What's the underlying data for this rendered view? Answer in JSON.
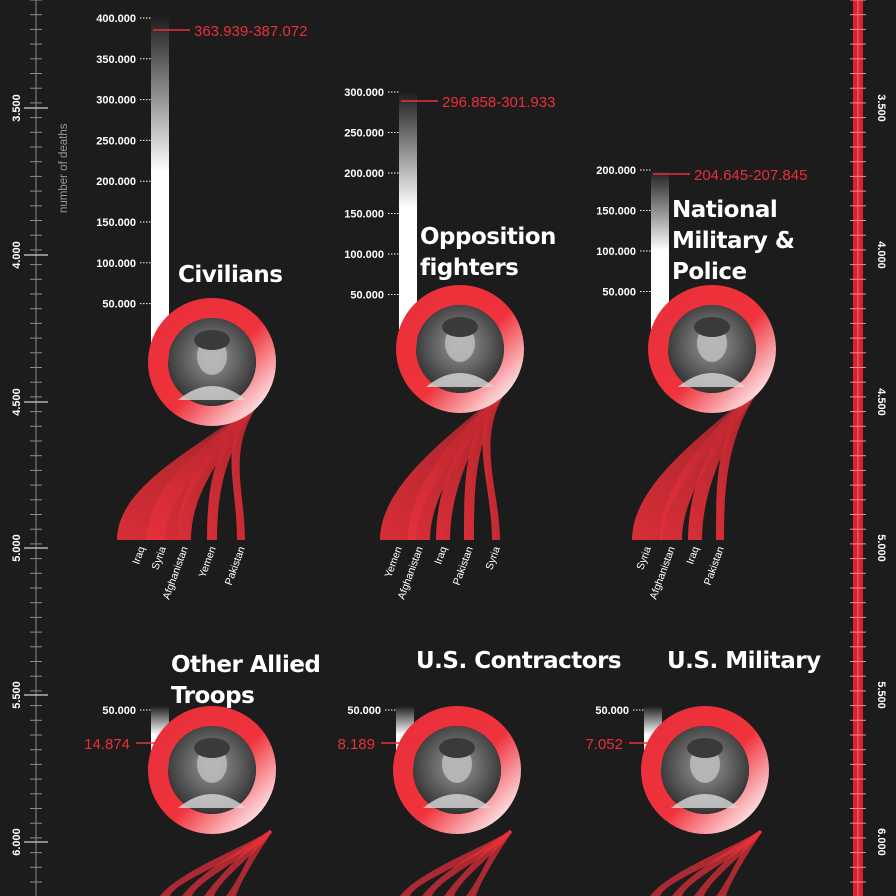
{
  "colors": {
    "background": "#1c1c1c",
    "accent": "#e8303a",
    "white": "#ffffff"
  },
  "y_axis_label": "number of deaths",
  "scale_labels": [
    "3.500",
    "4.000",
    "4.500",
    "5.000",
    "5.500",
    "6.000"
  ],
  "chart_data": [
    {
      "type": "bar",
      "category": "Civilians",
      "title_lines": [
        "Civilians"
      ],
      "value_range": [
        363939,
        387072
      ],
      "value_label": "363.939-387.072",
      "ticks": [
        "400.000",
        "350.000",
        "300.000",
        "250.000",
        "200.000",
        "150.000",
        "100.000",
        "50.000"
      ],
      "countries": [
        "Iraq",
        "Syria",
        "Afghanistan",
        "Yemen",
        "Pakistan"
      ],
      "photo": "civilian-boy-portrait"
    },
    {
      "type": "bar",
      "category": "Opposition fighters",
      "title_lines": [
        "Opposition",
        "fighters"
      ],
      "value_range": [
        296858,
        301933
      ],
      "value_label": "296.858-301.933",
      "ticks": [
        "300.000",
        "250.000",
        "200.000",
        "150.000",
        "100.000",
        "50.000"
      ],
      "countries": [
        "Yemen",
        "Afghanistan",
        "Iraq",
        "Pakistan",
        "Syria"
      ],
      "photo": "fighter-keffiyeh-portrait"
    },
    {
      "type": "bar",
      "category": "National Military & Police",
      "title_lines": [
        "National",
        "Military &",
        "Police"
      ],
      "value_range": [
        204645,
        207845
      ],
      "value_label": "204.645-207.845",
      "ticks": [
        "200.000",
        "150.000",
        "100.000",
        "50.000"
      ],
      "countries": [
        "Syria",
        "Afghanistan",
        "Iraq",
        "Pakistan"
      ],
      "photo": "soldier-helmet-portrait"
    },
    {
      "type": "bar",
      "category": "Other Allied Troops",
      "title_lines": [
        "Other Allied",
        "Troops"
      ],
      "value": 14874,
      "value_label": "14.874",
      "ticks": [
        "50.000"
      ],
      "countries": [],
      "photo": "allied-soldier-portrait"
    },
    {
      "type": "bar",
      "category": "U.S. Contractors",
      "title_lines": [
        "U.S. Contractors"
      ],
      "value": 8189,
      "value_label": "8.189",
      "ticks": [
        "50.000"
      ],
      "countries": [],
      "photo": "contractor-portrait"
    },
    {
      "type": "bar",
      "category": "U.S. Military",
      "title_lines": [
        "U.S. Military"
      ],
      "value": 7052,
      "value_label": "7.052",
      "ticks": [
        "50.000"
      ],
      "countries": [],
      "photo": "us-soldier-portrait"
    }
  ]
}
